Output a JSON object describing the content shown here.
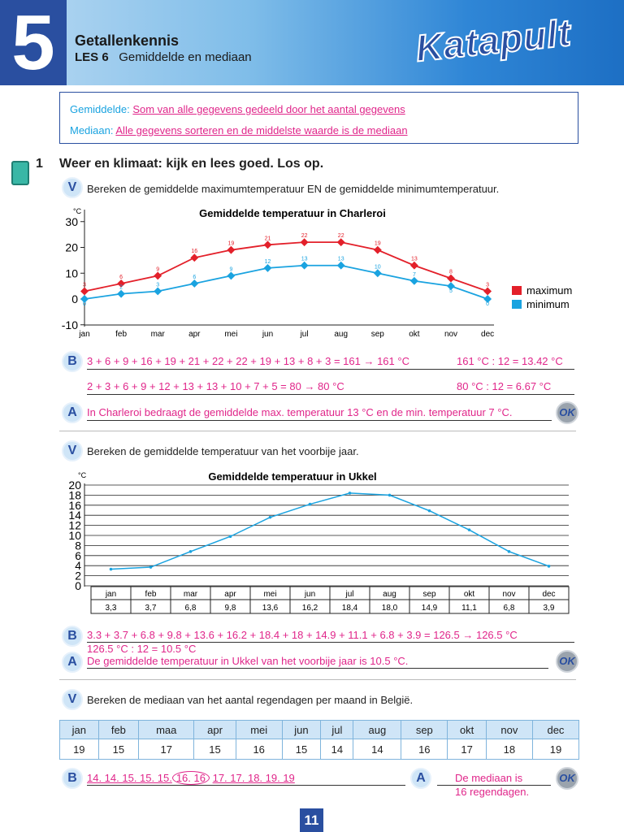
{
  "header": {
    "chapter": "5",
    "title": "Getallenkennis",
    "lesson_label": "LES 6",
    "lesson_title": "Gemiddelde en mediaan",
    "logo_text": "Katapult"
  },
  "definitions": [
    {
      "term": "Gemiddelde:",
      "text": "Som van alle gegevens gedeeld door het aantal gegevens"
    },
    {
      "term": "Mediaan:",
      "text": "Alle gegevens sorteren en de middelste waarde is de mediaan"
    }
  ],
  "exercise": {
    "number": "1",
    "title": "Weer en klimaat: kijk en lees goed. Los op.",
    "icon": "calculator-icon"
  },
  "part1": {
    "v": "V",
    "question": "Bereken de gemiddelde maximumtemperatuur EN de gemiddelde minimumtemperatuur.",
    "b": "B",
    "b_line1": "3 + 6 + 9 + 16 + 19 + 21 + 22 + 22 + 19 + 13 + 8 + 3 = 161 → 161 °C",
    "b_line1_right": "161 °C : 12 = 13.42 °C",
    "b_line2": "2 + 3 + 6 + 9 + 12 + 13 + 13 + 10 + 7 + 5 = 80 → 80 °C",
    "b_line2_right": "80 °C : 12 = 6.67 °C",
    "a": "A",
    "answer": "In Charleroi bedraagt de gemiddelde max. temperatuur 13 °C en de min. temperatuur 7 °C.",
    "ok": "OK"
  },
  "part2": {
    "v": "V",
    "question": "Bereken de gemiddelde temperatuur van het voorbije jaar.",
    "b": "B",
    "b_line1": "3.3 + 3.7 + 6.8 + 9.8 + 13.6 + 16.2 + 18.4 + 18 + 14.9 + 11.1 + 6.8 + 3.9 = 126.5 → 126.5 °C",
    "b_line2": "126.5 °C : 12 = 10.5 °C",
    "a": "A",
    "answer": "De gemiddelde temperatuur in Ukkel van het voorbije jaar is 10.5 °C.",
    "ok": "OK"
  },
  "part3": {
    "v": "V",
    "question": "Bereken de mediaan van het aantal regendagen per maand in België.",
    "headers": [
      "jan",
      "feb",
      "maa",
      "apr",
      "mei",
      "jun",
      "jul",
      "aug",
      "sep",
      "okt",
      "nov",
      "dec"
    ],
    "values": [
      "19",
      "15",
      "17",
      "15",
      "16",
      "15",
      "14",
      "14",
      "16",
      "17",
      "18",
      "19"
    ],
    "b": "B",
    "sorted_before": "14. 14. 15. 15. 15.",
    "sorted_circled": "16. 16",
    "sorted_after": "17. 17. 18. 19. 19",
    "a": "A",
    "answer_line1": "De mediaan is",
    "answer_line2": "16 regendagen.",
    "ok": "OK"
  },
  "page_number": "11",
  "chart_data": [
    {
      "type": "line",
      "title": "Gemiddelde temperatuur in Charleroi",
      "ylabel": "°C",
      "ylim": [
        -10,
        30
      ],
      "yticks": [
        "30",
        "20",
        "10",
        "0",
        "-10"
      ],
      "categories": [
        "jan",
        "feb",
        "mar",
        "apr",
        "mei",
        "jun",
        "jul",
        "aug",
        "sep",
        "okt",
        "nov",
        "dec"
      ],
      "series": [
        {
          "name": "maximum",
          "color": "#e3202a",
          "values": [
            3,
            6,
            9,
            16,
            19,
            21,
            22,
            22,
            19,
            13,
            8,
            3
          ]
        },
        {
          "name": "minimum",
          "color": "#1aa3e0",
          "values": [
            0,
            2,
            3,
            6,
            9,
            12,
            13,
            13,
            10,
            7,
            5,
            0
          ]
        }
      ],
      "legend": "right"
    },
    {
      "type": "line",
      "title": "Gemiddelde temperatuur in Ukkel",
      "ylabel": "°C",
      "ylim": [
        0,
        20
      ],
      "yticks": [
        "20",
        "18",
        "16",
        "14",
        "12",
        "10",
        "8",
        "6",
        "4",
        "2",
        "0"
      ],
      "grid": true,
      "categories": [
        "jan",
        "feb",
        "mar",
        "apr",
        "mei",
        "jun",
        "jul",
        "aug",
        "sep",
        "okt",
        "nov",
        "dec"
      ],
      "labels": [
        "3,3",
        "3,7",
        "6,8",
        "9,8",
        "13,6",
        "16,2",
        "18,4",
        "18,0",
        "14,9",
        "11,1",
        "6,8",
        "3,9"
      ],
      "series": [
        {
          "color": "#1aa3e0",
          "values": [
            3.3,
            3.7,
            6.8,
            9.8,
            13.6,
            16.2,
            18.4,
            18.0,
            14.9,
            11.1,
            6.8,
            3.9
          ]
        }
      ]
    }
  ]
}
